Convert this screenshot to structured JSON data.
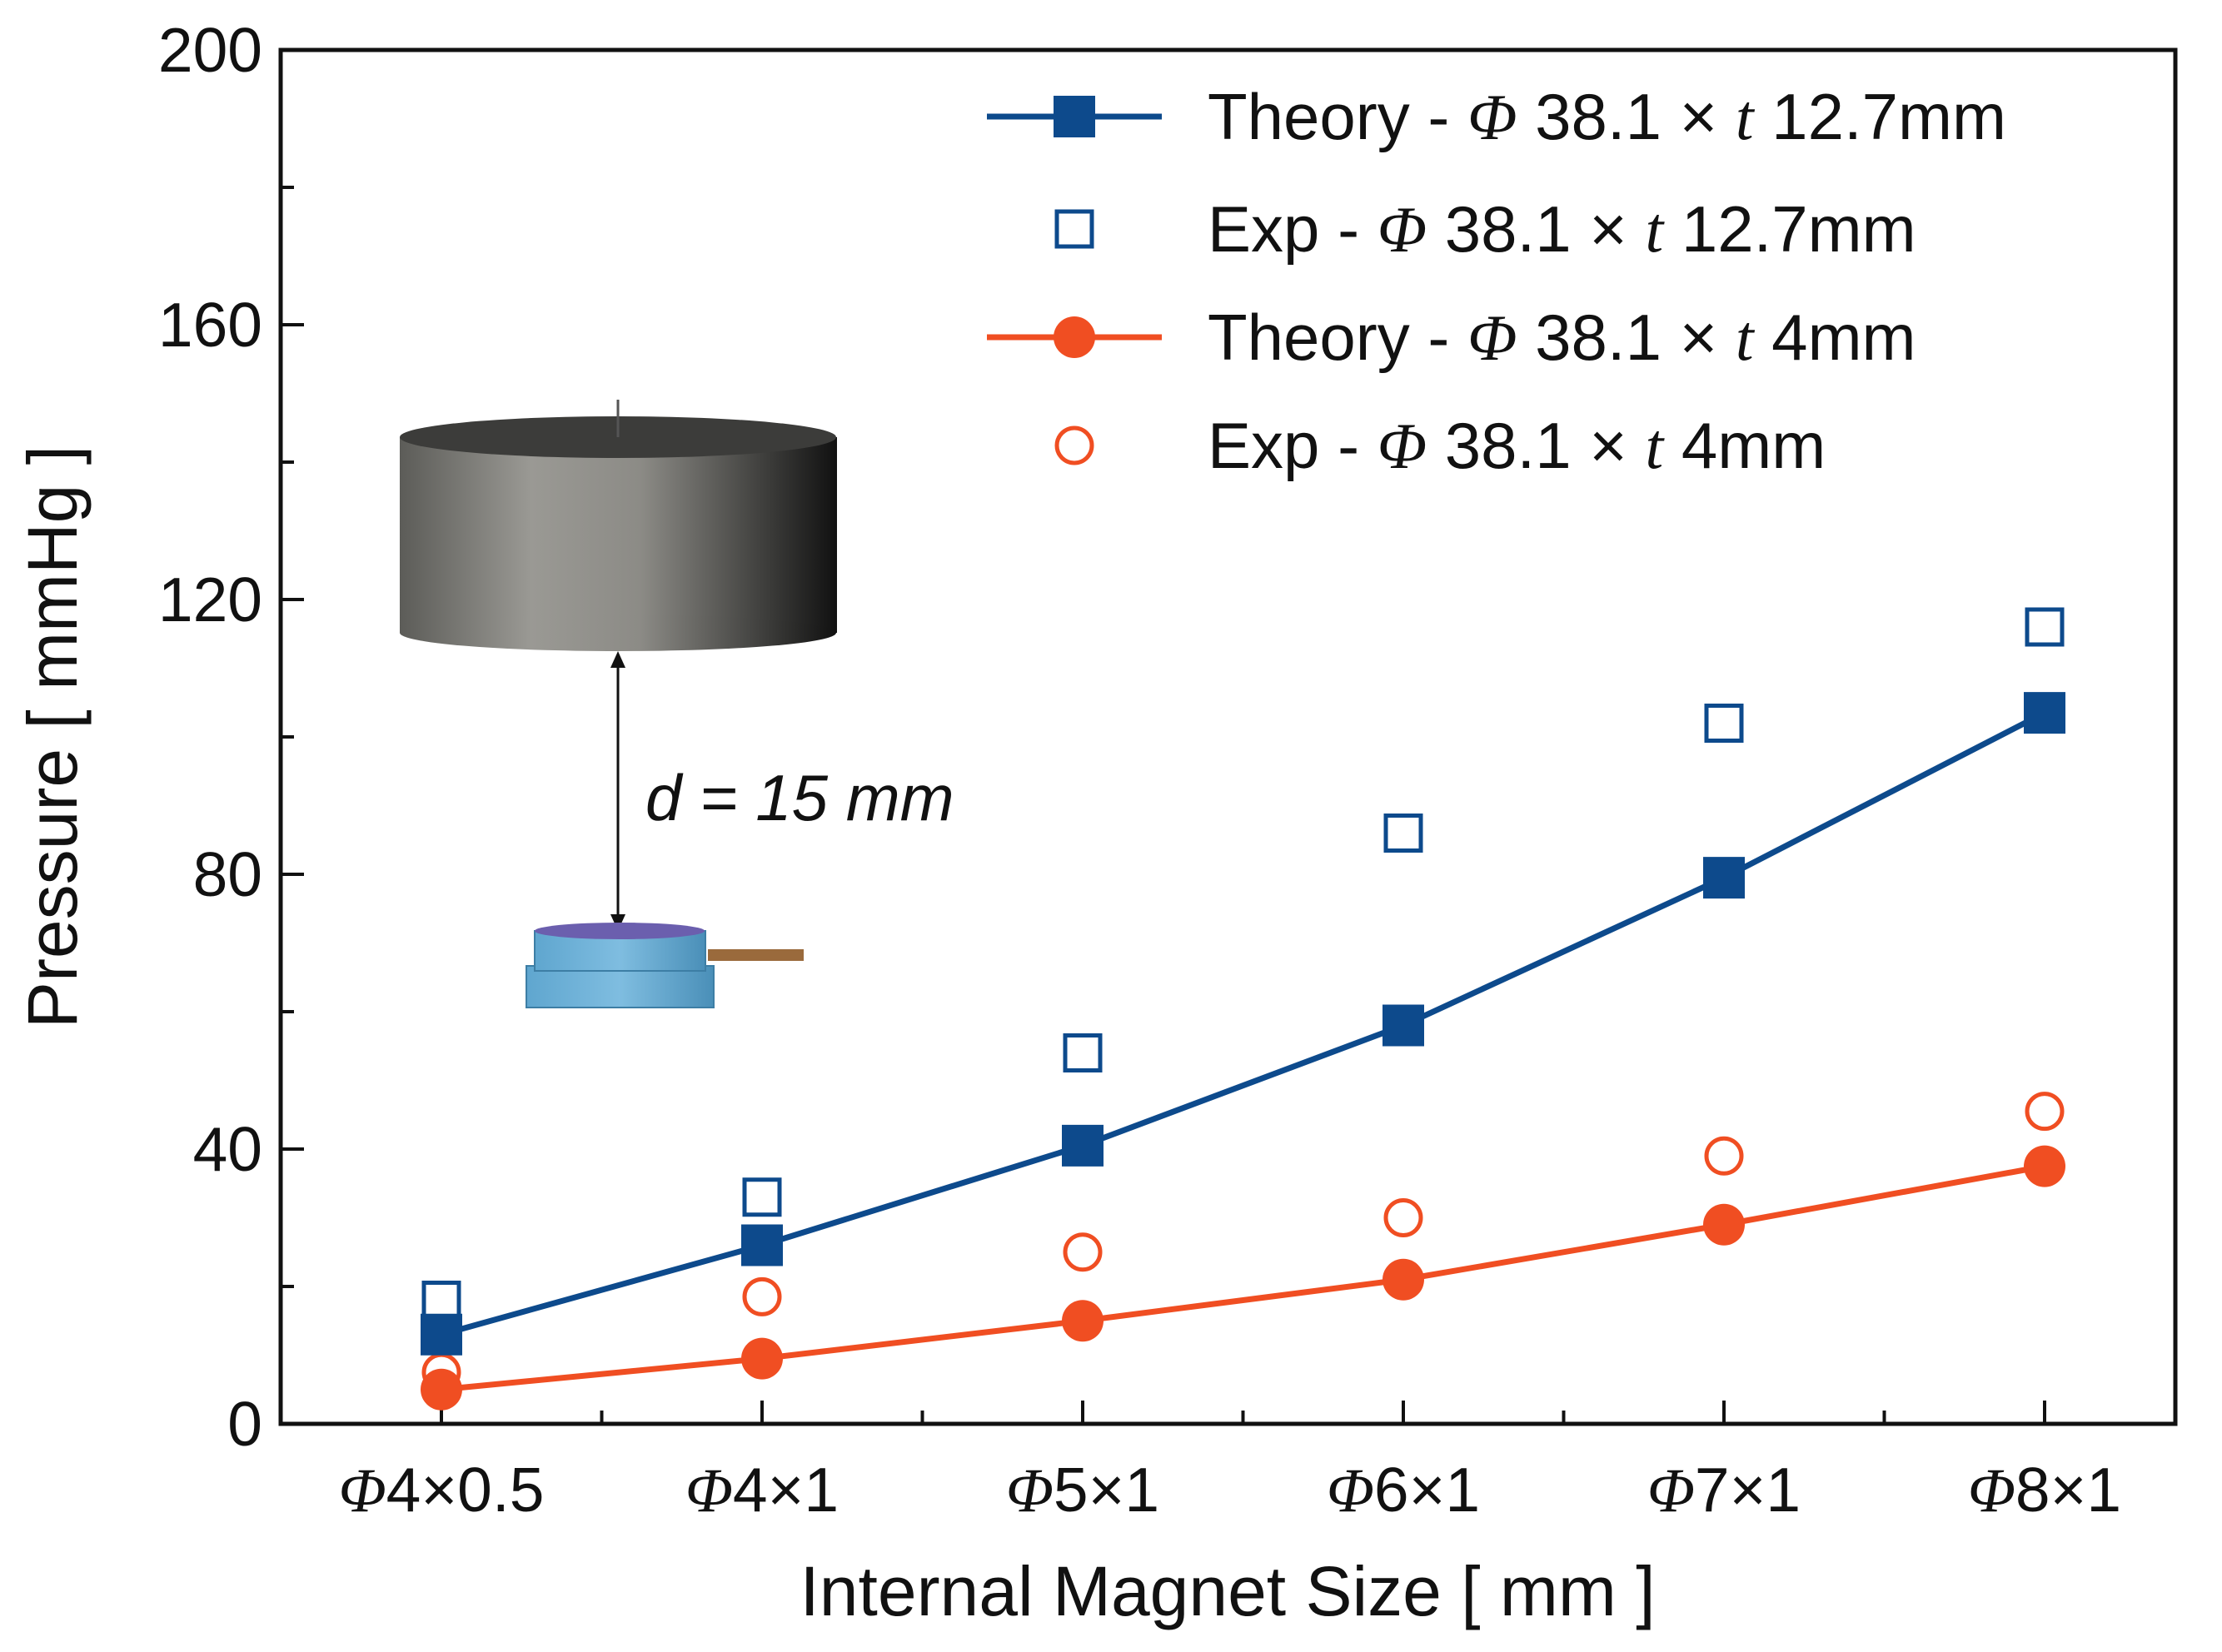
{
  "chart_data": {
    "type": "line",
    "title": "",
    "xlabel": "Internal Magnet Size [ mm ]",
    "ylabel": "Pressure [ mmHg ]",
    "categories": [
      "Φ4×0.5",
      "Φ4×1",
      "Φ5×1",
      "Φ6×1",
      "Φ7×1",
      "Φ8×1"
    ],
    "ylim": [
      0,
      200
    ],
    "yticks": [
      0,
      40,
      80,
      120,
      160,
      200
    ],
    "series": [
      {
        "name": "Theory - Φ 38.1 × t 12.7mm",
        "kind": "line-marker",
        "marker": "square-filled",
        "color": "#0d4a8c",
        "values": [
          13,
          26,
          40.5,
          58,
          79.5,
          103.5
        ]
      },
      {
        "name": "Exp - Φ 38.1 × t 12.7mm",
        "kind": "marker",
        "marker": "square-open",
        "color": "#0d4a8c",
        "values": [
          18,
          33,
          54,
          86,
          102,
          116
        ]
      },
      {
        "name": "Theory - Φ 38.1 × t 4mm",
        "kind": "line-marker",
        "marker": "circle-filled",
        "color": "#f04e22",
        "values": [
          5,
          9.5,
          15,
          21,
          29,
          37.5
        ]
      },
      {
        "name": "Exp - Φ 38.1 × t 4mm",
        "kind": "marker",
        "marker": "circle-open",
        "color": "#f04e22",
        "values": [
          7.5,
          18.5,
          25,
          30,
          39,
          45.5
        ]
      }
    ],
    "legend": {
      "position": "top-right",
      "entries": [
        {
          "prefix": "Theory - ",
          "phi": "Φ",
          "mid": " 38.1 × ",
          "t": "t",
          "suffix": " 12.7mm"
        },
        {
          "prefix": "Exp - ",
          "phi": "Φ",
          "mid": " 38.1 × ",
          "t": "t",
          "suffix": " 12.7mm"
        },
        {
          "prefix": "Theory - ",
          "phi": "Φ",
          "mid": " 38.1 × ",
          "t": "t",
          "suffix": " 4mm"
        },
        {
          "prefix": "Exp - ",
          "phi": "Φ",
          "mid": " 38.1 × ",
          "t": "t",
          "suffix": " 4mm"
        }
      ]
    },
    "tick_parts": [
      {
        "phi": "Φ",
        "rest": "4×0.5"
      },
      {
        "phi": "Φ",
        "rest": "4×1"
      },
      {
        "phi": "Φ",
        "rest": "5×1"
      },
      {
        "phi": "Φ",
        "rest": "6×1"
      },
      {
        "phi": "Φ",
        "rest": "7×1"
      },
      {
        "phi": "Φ",
        "rest": "8×1"
      }
    ],
    "annotation": "d = 15 mm"
  }
}
